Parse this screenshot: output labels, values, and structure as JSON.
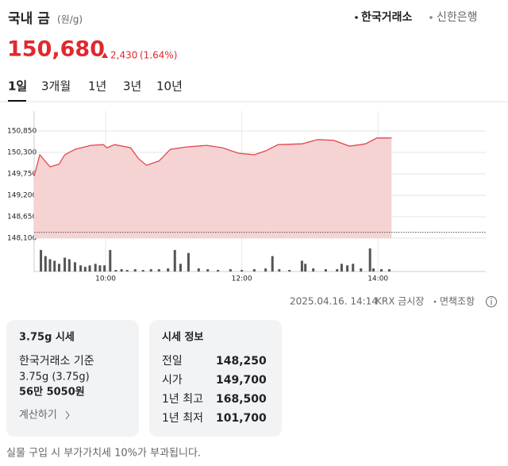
{
  "header": {
    "title": "국내 금",
    "unit": "(원/g)",
    "sources": [
      "한국거래소",
      "신한은행"
    ],
    "price": "150,680",
    "change": "2,430",
    "change_pct": "(1.64%)"
  },
  "tabs": [
    "1일",
    "3개월",
    "1년",
    "3년",
    "10년"
  ],
  "chart_data": {
    "type": "line",
    "color": "#e0474c",
    "fill": "#f6d3d3",
    "x": [
      537,
      542,
      551,
      559,
      564,
      573,
      587,
      598,
      601,
      608,
      622,
      629,
      636,
      647,
      657,
      671,
      689,
      703,
      717,
      731,
      741,
      752,
      773,
      787,
      801,
      815,
      829,
      839,
      852
    ],
    "values": [
      149690,
      150240,
      149930,
      150000,
      150240,
      150380,
      150480,
      150500,
      150420,
      150500,
      150420,
      150140,
      149970,
      150080,
      150380,
      150440,
      150480,
      150420,
      150280,
      150240,
      150340,
      150500,
      150520,
      150630,
      150610,
      150460,
      150520,
      150670,
      150670
    ],
    "xlim": [
      537,
      935
    ],
    "ylim": [
      148100,
      150850
    ],
    "xticks": [
      {
        "value": 600,
        "label": "10:00"
      },
      {
        "value": 720,
        "label": "12:00"
      },
      {
        "value": 840,
        "label": "14:00"
      }
    ],
    "yticks": [
      {
        "value": 148100,
        "label": "148,100"
      },
      {
        "value": 148650,
        "label": "148,650"
      },
      {
        "value": 149200,
        "label": "149,200"
      },
      {
        "value": 149750,
        "label": "149,750"
      },
      {
        "value": 150300,
        "label": "150,300"
      },
      {
        "value": 150850,
        "label": "150,850"
      }
    ],
    "reference_line": 148250,
    "grid": true,
    "volume": {
      "color": "#555555",
      "ylim": [
        0,
        32
      ],
      "x": [
        543,
        547,
        551,
        555,
        559,
        564,
        568,
        573,
        578,
        582,
        586,
        591,
        595,
        599,
        604,
        609,
        614,
        619,
        626,
        633,
        640,
        647,
        655,
        661,
        666,
        673,
        682,
        690,
        699,
        710,
        720,
        731,
        741,
        747,
        753,
        762,
        773,
        776,
        783,
        794,
        804,
        808,
        813,
        818,
        825,
        833,
        836,
        843,
        850
      ],
      "values": [
        28,
        20,
        16,
        14,
        10,
        18,
        16,
        12,
        8,
        6,
        8,
        10,
        8,
        8,
        28,
        2,
        3,
        2,
        3,
        2,
        3,
        3,
        4,
        28,
        10,
        24,
        4,
        3,
        2,
        3,
        2,
        3,
        4,
        20,
        3,
        2,
        14,
        10,
        4,
        3,
        3,
        10,
        8,
        10,
        4,
        30,
        4,
        3,
        3
      ]
    }
  },
  "footer": {
    "timestamp": "2025.04.16. 14:14",
    "market": "KRX 금시장",
    "disclaimer": "면책조항"
  },
  "cards": [
    {
      "title": "3.75g 시세",
      "lines": [
        "한국거래소 기준",
        "3.75g (3.75g)",
        "56만 5050원"
      ],
      "link": "계산하기"
    },
    {
      "title": "시세 정보",
      "rows": [
        [
          "전일",
          "148,250"
        ],
        [
          "시가",
          "149,700"
        ],
        [
          "1년 최고",
          "168,500"
        ],
        [
          "1년 최저",
          "101,700"
        ]
      ]
    }
  ],
  "note": "실물 구입 시 부가가치세 10%가 부과됩니다."
}
